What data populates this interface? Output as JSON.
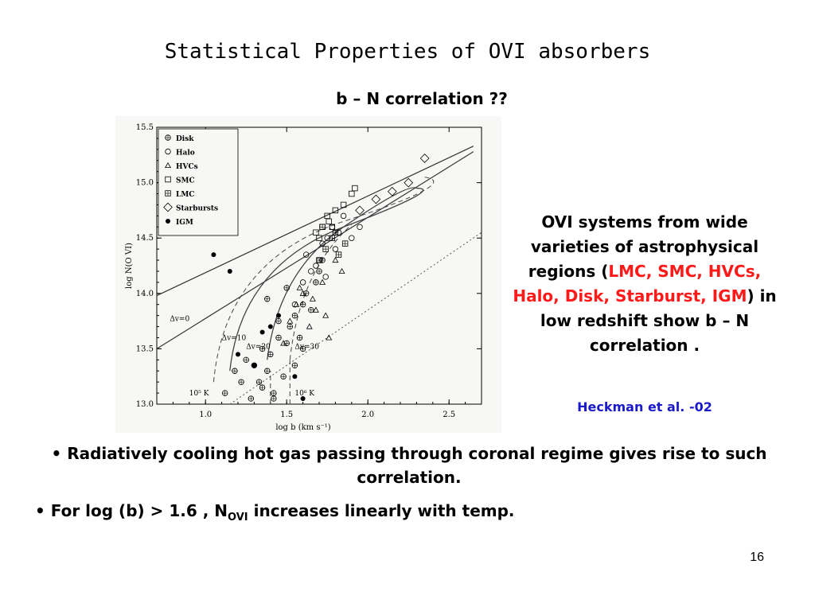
{
  "slide": {
    "title": "Statistical Properties of OVI absorbers",
    "subtitle": "b – N correlation ??",
    "side_text": {
      "line1_pre": "OVI systems from wide varieties of astrophysical regions (",
      "red_part": "LMC, SMC, HVCs, Halo, Disk, Starburst, IGM",
      "line_post": ") in low redshift show b – N correlation ."
    },
    "citation": "Heckman et al. -02",
    "bullet1": "Radiatively cooling hot gas passing through coronal regime gives rise to such correlation.",
    "bullet2_pre": "For log (b) > 1.6 , N",
    "bullet2_sub": "OVI",
    "bullet2_post": " increases linearly with temp.",
    "bullet_char": "•",
    "page_number": "16"
  },
  "chart_data": {
    "type": "scatter",
    "xlabel": "log b (km s⁻¹)",
    "ylabel": "log N(O VI)",
    "xlim": [
      0.7,
      2.7
    ],
    "ylim": [
      13.0,
      15.5
    ],
    "x_ticks": [
      "1.0",
      "1.5",
      "2.0",
      "2.5"
    ],
    "x_tick_values": [
      1.0,
      1.5,
      2.0,
      2.5
    ],
    "y_ticks": [
      "13.0",
      "13.5",
      "14.0",
      "14.5",
      "15.0",
      "15.5"
    ],
    "y_tick_values": [
      13.0,
      13.5,
      14.0,
      14.5,
      15.0,
      15.5
    ],
    "legend": [
      "Disk",
      "Halo",
      "HVCs",
      "SMC",
      "LMC",
      "Starbursts",
      "IGM"
    ],
    "legend_placement": "top-left",
    "annotations": [
      "Δv=0",
      "Δv=20",
      "Δv=10",
      "Δv=30",
      "10⁵ K",
      "10⁶ K"
    ],
    "series": [
      {
        "name": "Disk",
        "marker": "circle-plus",
        "x": [
          1.12,
          1.18,
          1.22,
          1.25,
          1.28,
          1.3,
          1.33,
          1.35,
          1.38,
          1.4,
          1.42,
          1.45,
          1.48,
          1.5,
          1.52,
          1.55,
          1.58,
          1.6,
          1.62,
          1.65,
          1.68,
          1.7,
          1.72,
          1.35,
          1.45,
          1.55,
          1.6,
          1.42,
          1.38,
          1.5
        ],
        "y": [
          13.1,
          13.3,
          13.2,
          13.4,
          13.05,
          13.35,
          13.2,
          13.5,
          13.3,
          13.45,
          13.1,
          13.6,
          13.25,
          13.55,
          13.7,
          13.8,
          13.6,
          13.9,
          14.0,
          13.85,
          14.1,
          14.2,
          14.3,
          13.15,
          13.75,
          13.35,
          13.5,
          13.05,
          13.95,
          14.05
        ]
      },
      {
        "name": "Halo",
        "marker": "circle-open",
        "x": [
          1.55,
          1.6,
          1.65,
          1.7,
          1.72,
          1.75,
          1.78,
          1.8,
          1.82,
          1.85,
          1.9,
          1.95,
          1.62,
          1.68,
          1.74
        ],
        "y": [
          13.9,
          14.1,
          14.2,
          14.3,
          14.45,
          14.5,
          14.6,
          14.4,
          14.55,
          14.7,
          14.5,
          14.6,
          14.35,
          14.25,
          14.15
        ]
      },
      {
        "name": "HVCs",
        "marker": "triangle",
        "x": [
          1.48,
          1.52,
          1.56,
          1.6,
          1.64,
          1.68,
          1.72,
          1.76,
          1.8,
          1.84,
          1.58,
          1.66,
          1.74
        ],
        "y": [
          13.55,
          13.75,
          13.9,
          14.0,
          13.7,
          13.85,
          14.1,
          13.6,
          14.3,
          14.2,
          14.05,
          13.95,
          13.8
        ]
      },
      {
        "name": "SMC",
        "marker": "square",
        "x": [
          1.7,
          1.72,
          1.75,
          1.78,
          1.8,
          1.85,
          1.9,
          1.92,
          1.68,
          1.76
        ],
        "y": [
          14.5,
          14.6,
          14.7,
          14.6,
          14.75,
          14.8,
          14.9,
          14.95,
          14.55,
          14.65
        ]
      },
      {
        "name": "LMC",
        "marker": "square-plus",
        "x": [
          1.7,
          1.74,
          1.78,
          1.82,
          1.86,
          1.72,
          1.8
        ],
        "y": [
          14.3,
          14.4,
          14.5,
          14.35,
          14.45,
          14.6,
          14.55
        ]
      },
      {
        "name": "Starbursts",
        "marker": "diamond",
        "x": [
          1.95,
          2.05,
          2.15,
          2.25,
          2.35
        ],
        "y": [
          14.75,
          14.85,
          14.92,
          15.0,
          15.22
        ]
      },
      {
        "name": "IGM",
        "marker": "filled-circle",
        "x": [
          1.05,
          1.15,
          1.2,
          1.3,
          1.4,
          1.45,
          1.55,
          1.6,
          1.35
        ],
        "y": [
          14.35,
          14.2,
          13.45,
          13.35,
          13.7,
          13.8,
          13.25,
          13.05,
          13.65
        ]
      }
    ],
    "grid": false
  }
}
